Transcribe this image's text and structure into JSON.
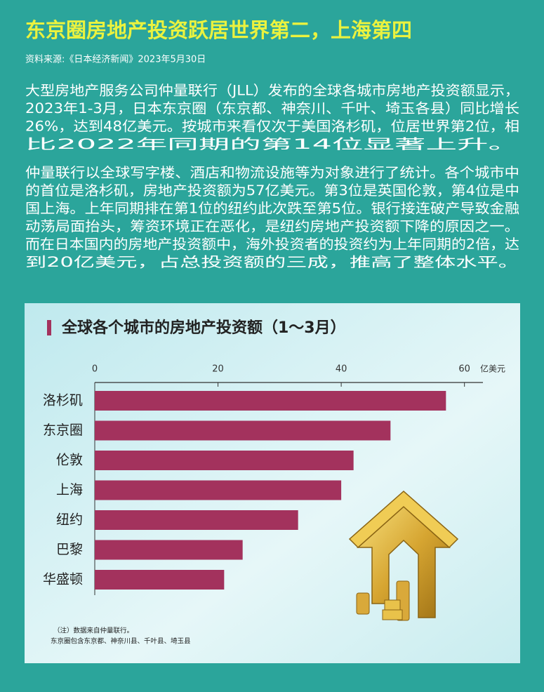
{
  "header": {
    "title": "东京圈房地产投资跃居世界第二，上海第四",
    "source": "资料来源:《日本经济新闻》2023年5月30日"
  },
  "paragraphs": [
    [
      "大型房地产服务公司仲量联行（JLL）发布的全球各城市房地产投资额显示，",
      "2023年1-3月，日本东京圈（东京都、神奈川、千叶、埼玉各县）同比增长",
      "26%，达到48亿美元。按城市来看仅次于美国洛杉矶，位居世界第2位，相",
      "比2022年同期的第14位显著上升。"
    ],
    [
      "仲量联行以全球写字楼、酒店和物流设施等为对象进行了统计。各个城市中",
      "的首位是洛杉矶，房地产投资额为57亿美元。第3位是英国伦敦，第4位是中",
      "国上海。上年同期排在第1位的纽约此次跌至第5位。银行接连破产导致金融",
      "动荡局面抬头，筹资环境正在恶化，是纽约房地产投资额下降的原因之一。",
      "而在日本国内的房地产投资额中，海外投资者的投资约为上年同期的2倍，达",
      "到20亿美元，占总投资额的三成，推高了整体水平。"
    ]
  ],
  "chart_data": {
    "type": "bar",
    "orientation": "horizontal",
    "title": "全球各个城市的房地产投资额（1～3月）",
    "x_unit": "亿美元",
    "categories": [
      "洛杉矶",
      "东京圈",
      "伦敦",
      "上海",
      "纽约",
      "巴黎",
      "华盛顿"
    ],
    "values": [
      57,
      48,
      42,
      40,
      33,
      24,
      21
    ],
    "color": "#a3325d",
    "xlim": [
      0,
      63
    ],
    "xticks": [
      0,
      20,
      40,
      60
    ],
    "notes": [
      "（注）数据来自仲量联行。",
      "东京圈包含东京都、神奈川县、千叶县、埼玉县"
    ]
  }
}
